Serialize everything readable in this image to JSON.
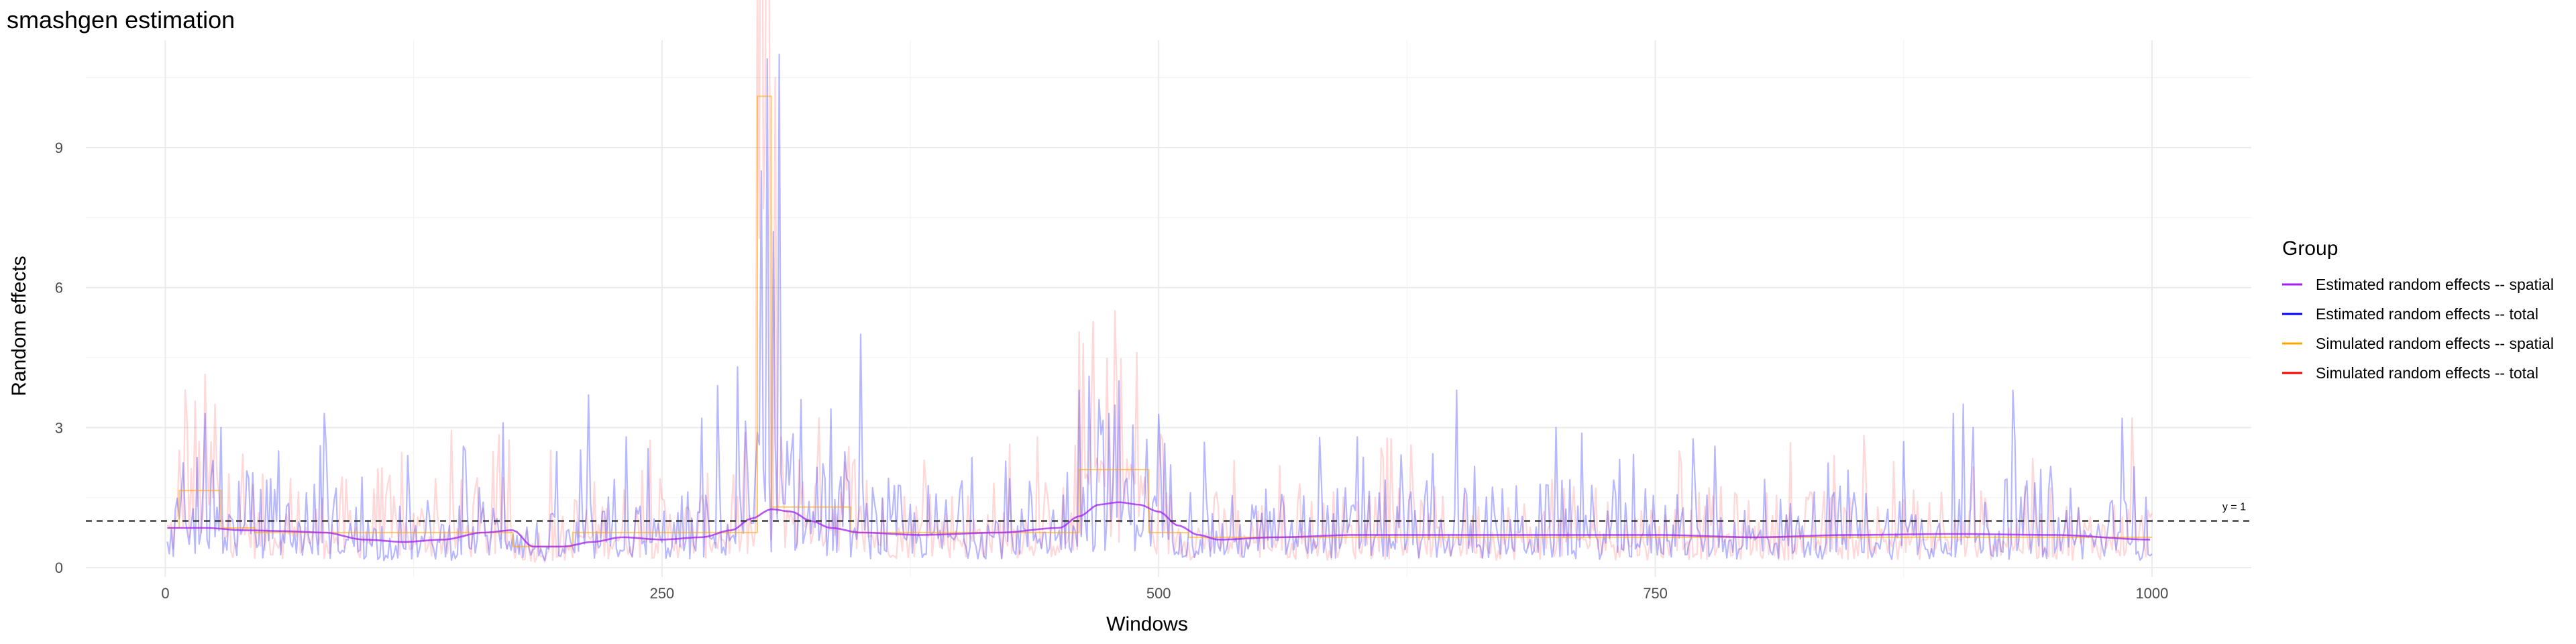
{
  "chart_data": {
    "type": "line",
    "title": "smashgen estimation",
    "xlabel": "Windows",
    "ylabel": "Random effects",
    "xlim": [
      -40,
      1050
    ],
    "ylim": [
      -0.2,
      11.3
    ],
    "x_ticks": [
      0,
      250,
      500,
      750,
      1000
    ],
    "y_ticks": [
      0,
      3,
      6,
      9
    ],
    "grid": true,
    "legend_position": "right",
    "legend_title": "Group",
    "reference_line": {
      "y": 1,
      "label": "y = 1",
      "style": "dashed",
      "color": "#333333"
    },
    "n_windows": 1000,
    "series": [
      {
        "name": "Estimated random effects -- spatial",
        "color": "#a020f0",
        "style": "smooth",
        "knots_x": [
          1,
          20,
          40,
          60,
          80,
          100,
          120,
          140,
          160,
          175,
          185,
          200,
          215,
          230,
          250,
          270,
          285,
          295,
          305,
          315,
          325,
          335,
          350,
          380,
          420,
          450,
          460,
          470,
          480,
          490,
          500,
          510,
          520,
          530,
          560,
          600,
          650,
          700,
          750,
          800,
          850,
          900,
          950,
          1000
        ],
        "knots_y": [
          0.85,
          0.85,
          0.8,
          0.78,
          0.75,
          0.6,
          0.55,
          0.6,
          0.75,
          0.8,
          0.45,
          0.45,
          0.55,
          0.65,
          0.6,
          0.65,
          0.8,
          1.05,
          1.25,
          1.2,
          1.0,
          0.85,
          0.75,
          0.7,
          0.75,
          0.85,
          1.1,
          1.35,
          1.4,
          1.35,
          1.2,
          0.9,
          0.7,
          0.6,
          0.65,
          0.7,
          0.7,
          0.7,
          0.7,
          0.65,
          0.7,
          0.72,
          0.7,
          0.6
        ]
      },
      {
        "name": "Estimated random effects -- total",
        "color": "#0000ff",
        "style": "noisy",
        "baseline": "Estimated random effects -- spatial",
        "spikes_x": [
          20,
          28,
          57,
          80,
          122,
          150,
          170,
          213,
          232,
          270,
          278,
          288,
          300,
          303,
          306,
          309,
          320,
          335,
          350,
          460,
          465,
          470,
          475,
          480,
          600,
          650,
          700,
          780,
          900,
          905,
          910,
          930,
          985
        ],
        "spikes_y": [
          3.3,
          3.0,
          2.5,
          3.3,
          2.4,
          2.6,
          3.1,
          3.7,
          2.8,
          3.2,
          3.9,
          4.3,
          8.5,
          10.9,
          7.2,
          11.0,
          3.6,
          3.4,
          5.0,
          3.8,
          4.1,
          3.6,
          3.3,
          4.0,
          2.8,
          3.8,
          3.0,
          2.6,
          3.3,
          3.5,
          3.0,
          3.8,
          3.2
        ]
      },
      {
        "name": "Simulated random effects -- spatial",
        "color": "#ffa500",
        "style": "step",
        "steps_x": [
          1,
          7,
          28,
          45,
          175,
          205,
          298,
          305,
          309,
          345,
          460,
          495,
          515,
          1000
        ],
        "steps_y": [
          0.85,
          1.65,
          0.85,
          0.75,
          0.45,
          0.75,
          10.1,
          1.3,
          1.3,
          0.75,
          2.1,
          0.75,
          0.65
        ]
      },
      {
        "name": "Simulated random effects -- total",
        "color": "#ff0000",
        "style": "noisy",
        "baseline": "Simulated random effects -- spatial",
        "spikes_x": [
          10,
          25,
          302,
          307,
          478,
          990
        ],
        "spikes_y": [
          3.8,
          3.5,
          9.5,
          10.5,
          5.5,
          3.2
        ]
      }
    ]
  }
}
